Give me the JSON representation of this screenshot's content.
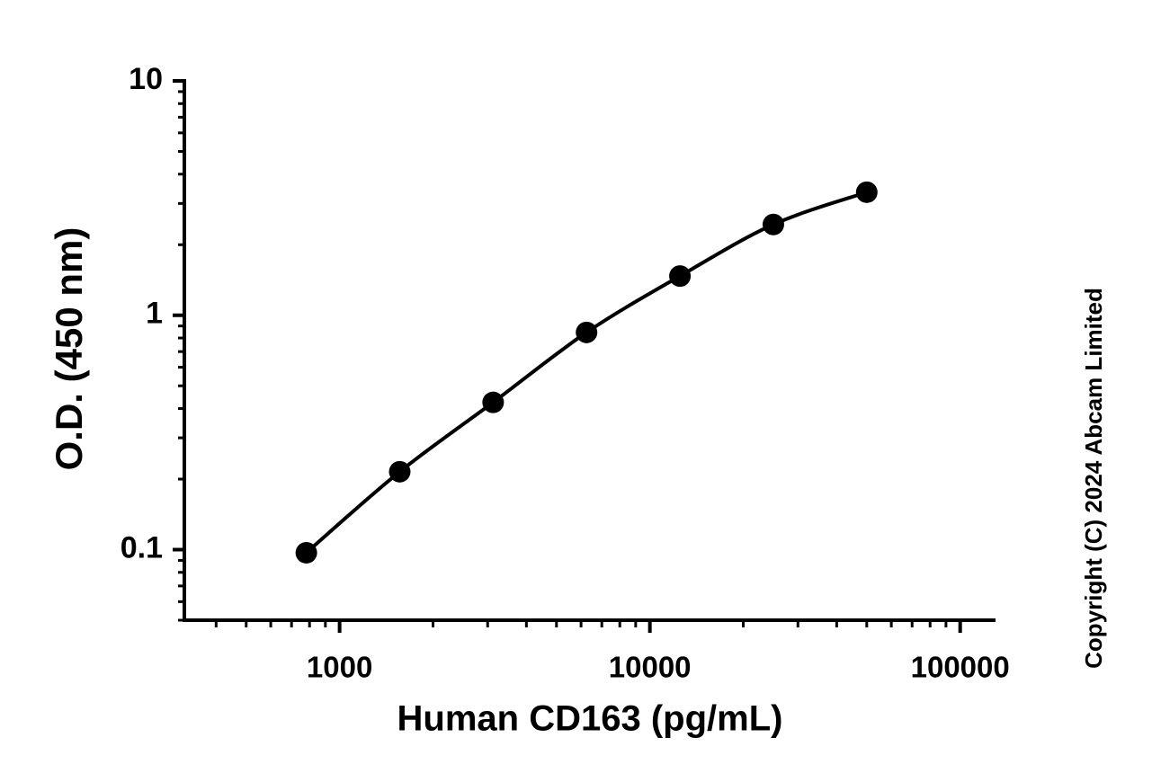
{
  "chart_data": {
    "type": "scatter",
    "x_label": "Human CD163 (pg/mL)",
    "y_label": "O.D. (450 nm)",
    "x": [
      781.25,
      1562.5,
      3125,
      6250,
      12500,
      25000,
      50000
    ],
    "series": [
      {
        "color": "#000000",
        "values": [
          0.097,
          0.215,
          0.425,
          0.845,
          1.47,
          2.44,
          3.35
        ]
      }
    ],
    "xlim": [
      316,
      130000
    ],
    "ylim": [
      0.05,
      10
    ],
    "xticks": [
      1000,
      10000,
      100000
    ],
    "yticks": [
      0.1,
      1,
      10
    ],
    "xlog": true,
    "ylog": true,
    "fit_curve": true,
    "copyright": "Copyright (C) 2024 Abcam Limited"
  }
}
